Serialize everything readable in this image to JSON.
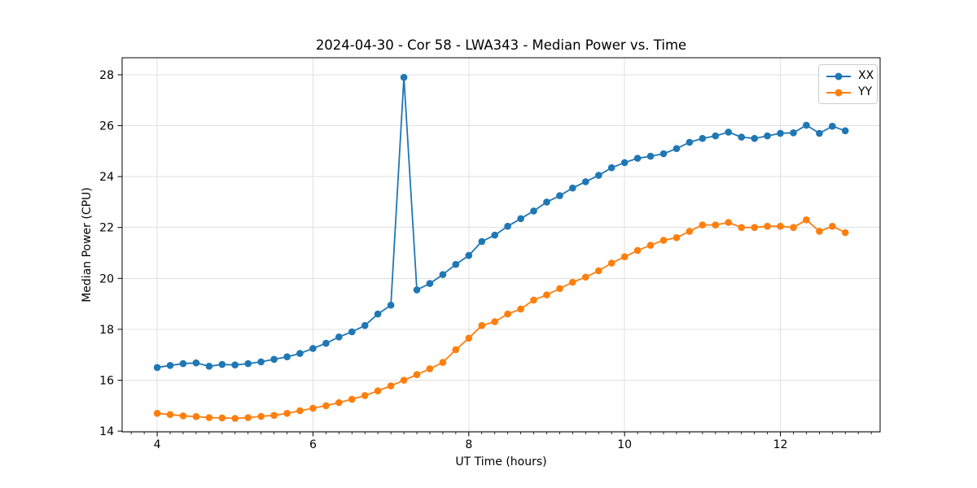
{
  "chart_data": {
    "type": "line",
    "title": "2024-04-30 - Cor 58 - LWA343 - Median Power vs. Time",
    "xlabel": "UT Time (hours)",
    "ylabel": "Median Power (CPU)",
    "xlim": [
      3.55,
      13.28
    ],
    "ylim": [
      13.97,
      28.67
    ],
    "xticks": [
      4,
      6,
      8,
      10,
      12
    ],
    "yticks": [
      14,
      16,
      18,
      20,
      22,
      24,
      26,
      28
    ],
    "x_minor_step": 0.166667,
    "grid": true,
    "grid_color": "#e0e0e0",
    "spine_color": "#000000",
    "text_color": "#000000",
    "background_color": "#ffffff",
    "legend_position": "upper right",
    "marker": "circle",
    "x": [
      4.0,
      4.167,
      4.333,
      4.5,
      4.667,
      4.833,
      5.0,
      5.167,
      5.333,
      5.5,
      5.667,
      5.833,
      6.0,
      6.167,
      6.333,
      6.5,
      6.667,
      6.833,
      7.0,
      7.167,
      7.333,
      7.5,
      7.667,
      7.833,
      8.0,
      8.167,
      8.333,
      8.5,
      8.667,
      8.833,
      9.0,
      9.167,
      9.333,
      9.5,
      9.667,
      9.833,
      10.0,
      10.167,
      10.333,
      10.5,
      10.667,
      10.833,
      11.0,
      11.167,
      11.333,
      11.5,
      11.667,
      11.833,
      12.0,
      12.167,
      12.333,
      12.5,
      12.667,
      12.833
    ],
    "series": [
      {
        "name": "XX",
        "color": "#1f77b4",
        "values": [
          16.5,
          16.58,
          16.65,
          16.68,
          16.55,
          16.62,
          16.6,
          16.65,
          16.72,
          16.82,
          16.92,
          17.05,
          17.25,
          17.45,
          17.7,
          17.9,
          18.15,
          18.6,
          18.95,
          27.9,
          19.55,
          19.8,
          20.15,
          20.55,
          20.9,
          21.45,
          21.7,
          22.05,
          22.35,
          22.65,
          23.0,
          23.25,
          23.55,
          23.8,
          24.05,
          24.35,
          24.55,
          24.72,
          24.8,
          24.9,
          25.1,
          25.35,
          25.5,
          25.6,
          25.75,
          25.55,
          25.5,
          25.6,
          25.7,
          25.72,
          26.02,
          25.7,
          25.98,
          25.8
        ]
      },
      {
        "name": "YY",
        "color": "#ff7f0e",
        "values": [
          14.7,
          14.65,
          14.6,
          14.57,
          14.53,
          14.52,
          14.5,
          14.53,
          14.58,
          14.62,
          14.7,
          14.8,
          14.9,
          15.0,
          15.12,
          15.25,
          15.4,
          15.58,
          15.78,
          16.0,
          16.22,
          16.45,
          16.7,
          17.2,
          17.65,
          18.15,
          18.3,
          18.6,
          18.8,
          19.15,
          19.35,
          19.6,
          19.85,
          20.05,
          20.3,
          20.6,
          20.85,
          21.1,
          21.3,
          21.5,
          21.6,
          21.85,
          22.1,
          22.1,
          22.2,
          22.0,
          22.0,
          22.05,
          22.05,
          22.0,
          22.3,
          21.85,
          22.05,
          21.8
        ]
      }
    ]
  }
}
